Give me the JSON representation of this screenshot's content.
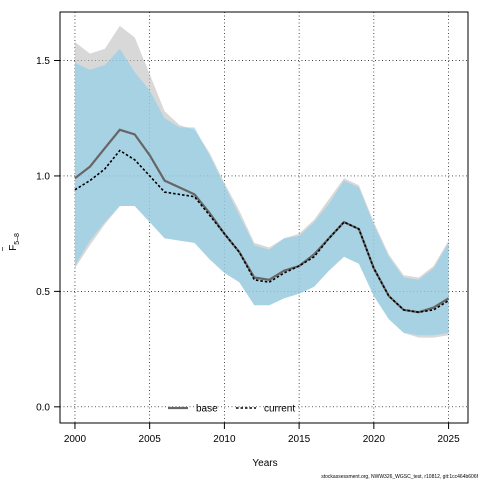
{
  "chart_data": {
    "type": "line",
    "xlabel": "Years",
    "ylabel": "F",
    "ylabel_bar": "‾",
    "ylabel_sub": "5–8",
    "xlim": [
      1999,
      2026.3
    ],
    "ylim": [
      -0.07,
      1.71
    ],
    "x_ticks": [
      2000,
      2005,
      2010,
      2015,
      2020,
      2025
    ],
    "y_ticks": [
      0.0,
      0.5,
      1.0,
      1.5
    ],
    "y_tick_labels": [
      "0.0",
      "0.5",
      "1.0",
      "1.5"
    ],
    "grid": true,
    "legend_position": "bottom",
    "footnote": "stockassessment.org, NWW326_WGSC_test, r10812, git:1cc464b606f",
    "x": [
      2000,
      2001,
      2002,
      2003,
      2004,
      2005,
      2006,
      2007,
      2008,
      2009,
      2010,
      2011,
      2012,
      2013,
      2014,
      2015,
      2016,
      2017,
      2018,
      2019,
      2020,
      2021,
      2022,
      2023,
      2024,
      2025
    ],
    "series": [
      {
        "name": "base",
        "color": "#666666",
        "band_color": "#bebebe",
        "values": [
          0.99,
          1.04,
          1.12,
          1.2,
          1.18,
          1.09,
          0.98,
          0.95,
          0.92,
          0.84,
          0.75,
          0.67,
          0.56,
          0.55,
          0.59,
          0.61,
          0.66,
          0.73,
          0.8,
          0.77,
          0.6,
          0.48,
          0.42,
          0.41,
          0.43,
          0.47
        ],
        "lower": [
          0.6,
          0.7,
          0.79,
          0.87,
          0.87,
          0.8,
          0.73,
          0.72,
          0.71,
          0.64,
          0.58,
          0.54,
          0.44,
          0.44,
          0.47,
          0.49,
          0.52,
          0.59,
          0.65,
          0.62,
          0.48,
          0.38,
          0.32,
          0.3,
          0.3,
          0.31
        ],
        "upper": [
          1.58,
          1.53,
          1.55,
          1.65,
          1.6,
          1.44,
          1.28,
          1.22,
          1.2,
          1.1,
          0.97,
          0.85,
          0.71,
          0.69,
          0.73,
          0.75,
          0.81,
          0.9,
          0.99,
          0.96,
          0.8,
          0.66,
          0.57,
          0.56,
          0.61,
          0.72
        ]
      },
      {
        "name": "current",
        "color": "#000000",
        "band_color": "#87ceeb",
        "values": [
          0.94,
          0.98,
          1.03,
          1.11,
          1.07,
          1.0,
          0.93,
          0.92,
          0.91,
          0.83,
          0.75,
          0.67,
          0.55,
          0.54,
          0.58,
          0.61,
          0.65,
          0.73,
          0.8,
          0.77,
          0.6,
          0.48,
          0.42,
          0.41,
          0.42,
          0.46
        ],
        "lower": [
          0.61,
          0.72,
          0.8,
          0.87,
          0.87,
          0.8,
          0.73,
          0.72,
          0.71,
          0.64,
          0.58,
          0.54,
          0.44,
          0.44,
          0.47,
          0.49,
          0.52,
          0.59,
          0.65,
          0.62,
          0.48,
          0.38,
          0.32,
          0.31,
          0.31,
          0.32
        ],
        "upper": [
          1.49,
          1.46,
          1.48,
          1.55,
          1.45,
          1.37,
          1.25,
          1.21,
          1.21,
          1.09,
          0.96,
          0.83,
          0.7,
          0.68,
          0.73,
          0.74,
          0.8,
          0.88,
          0.98,
          0.95,
          0.79,
          0.65,
          0.56,
          0.55,
          0.6,
          0.71
        ]
      }
    ]
  }
}
